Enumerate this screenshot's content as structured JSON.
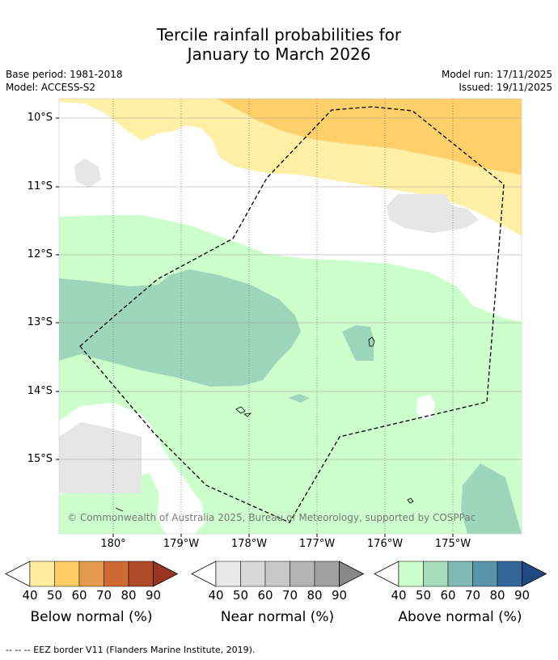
{
  "title": {
    "line1": "Tercile rainfall probabilities for",
    "line2": "January to March 2026"
  },
  "meta": {
    "base_period": "Base period: 1981-2018",
    "model": "Model: ACCESS-S2",
    "model_run": "Model run: 17/11/2025",
    "issued": "Issued: 19/11/2025"
  },
  "map": {
    "lat_labels": [
      "10°S",
      "11°S",
      "12°S",
      "13°S",
      "14°S",
      "15°S"
    ],
    "lon_labels": [
      "180°",
      "179°W",
      "178°W",
      "177°W",
      "176°W",
      "175°W"
    ],
    "copyright": "© Commonwealth of Australia 2025, Bureau of Meteorology, supported by COSPPac",
    "colors": {
      "below_40": "#fff0a6",
      "below_50": "#ffd06a",
      "near_40": "#e6e6e6",
      "above_40": "#ccffcc",
      "above_50": "#9ed6bc",
      "grid": "#999999",
      "eez": "#000000"
    }
  },
  "legends": [
    {
      "title": "Below normal (%)",
      "ticks": [
        "40",
        "50",
        "60",
        "70",
        "80",
        "90"
      ],
      "colors": [
        "#ffeea0",
        "#ffcc66",
        "#e49a4c",
        "#d06a34",
        "#b04a26",
        "#9a3422"
      ]
    },
    {
      "title": "Near normal (%)",
      "ticks": [
        "40",
        "50",
        "60",
        "70",
        "80",
        "90"
      ],
      "colors": [
        "#e8e8e8",
        "#d8d8d8",
        "#c8c8c8",
        "#b4b4b4",
        "#a0a0a0",
        "#888888"
      ]
    },
    {
      "title": "Above normal (%)",
      "ticks": [
        "40",
        "50",
        "60",
        "70",
        "80",
        "90"
      ],
      "colors": [
        "#ccffcc",
        "#a6dcbc",
        "#80b8b4",
        "#5a94a8",
        "#34669c",
        "#1e4a80"
      ]
    }
  ],
  "footnote": "--  --  -- EEZ border V11 (Flanders Marine Institute, 2019)."
}
